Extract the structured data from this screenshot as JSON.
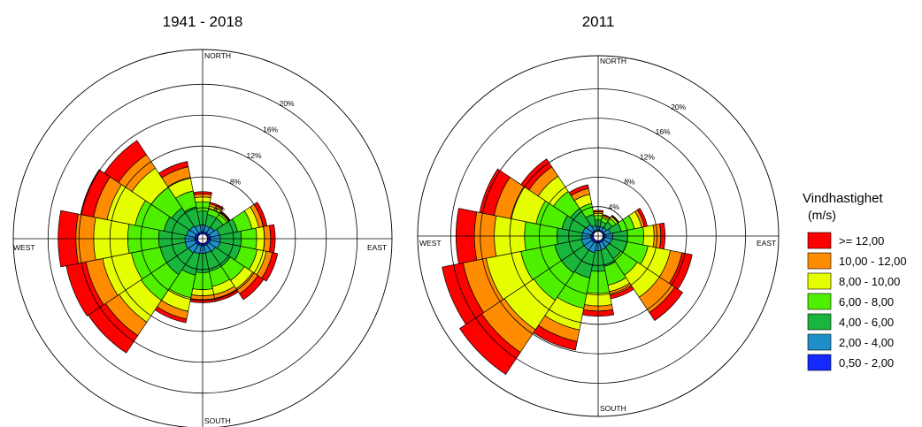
{
  "chart_data": [
    {
      "type": "wind-rose",
      "title": "1941 - 2018",
      "directions": [
        "NORTH",
        "EAST",
        "SOUTH",
        "WEST"
      ],
      "rings": [
        "4%",
        "8%",
        "12%",
        "16%",
        "20%"
      ],
      "ring_values": [
        4,
        8,
        12,
        16,
        20
      ],
      "rmax": 24.5,
      "sector_count": 16,
      "sector_angles_deg": [
        0,
        22.5,
        45,
        67.5,
        90,
        112.5,
        135,
        157.5,
        180,
        202.5,
        225,
        247.5,
        270,
        292.5,
        315,
        337.5
      ],
      "cumulative_percent": [
        [
          0.9,
          1.8,
          3.6,
          4.8,
          5.4,
          5.8,
          6.1
        ],
        [
          0.9,
          1.7,
          3.2,
          3.9,
          4.3,
          4.6,
          4.8
        ],
        [
          0.9,
          1.8,
          3.2,
          3.8,
          4.1,
          4.2,
          4.3
        ],
        [
          1.0,
          2.2,
          4.6,
          6.5,
          7.4,
          8.0,
          8.5
        ],
        [
          1.0,
          2.3,
          5.0,
          7.0,
          8.0,
          8.8,
          9.4
        ],
        [
          1.0,
          2.3,
          5.0,
          7.2,
          8.4,
          9.2,
          9.9
        ],
        [
          0.9,
          2.0,
          4.3,
          6.5,
          7.8,
          8.6,
          9.5
        ],
        [
          0.9,
          1.9,
          4.3,
          6.3,
          7.4,
          7.9,
          8.3
        ],
        [
          0.9,
          1.9,
          4.4,
          6.6,
          7.4,
          7.9,
          8.3
        ],
        [
          0.9,
          2.0,
          4.8,
          7.8,
          9.6,
          10.6,
          11.1
        ],
        [
          1.0,
          2.2,
          5.6,
          9.6,
          13.0,
          15.1,
          17.8
        ],
        [
          1.0,
          2.3,
          5.6,
          9.4,
          13.2,
          15.4,
          18.0
        ],
        [
          1.0,
          2.3,
          5.7,
          9.7,
          14.1,
          16.4,
          18.7
        ],
        [
          1.0,
          2.1,
          5.1,
          8.9,
          12.6,
          14.4,
          16.1
        ],
        [
          0.9,
          2.0,
          4.8,
          8.0,
          11.0,
          13.1,
          15.3
        ],
        [
          0.9,
          1.8,
          4.2,
          6.3,
          8.1,
          9.5,
          10.2
        ]
      ]
    },
    {
      "type": "wind-rose",
      "title": "2011",
      "directions": [
        "NORTH",
        "EAST",
        "SOUTH",
        "WEST"
      ],
      "rings": [
        "4%",
        "8%",
        "12%",
        "16%",
        "20%"
      ],
      "ring_values": [
        4,
        8,
        12,
        16,
        20
      ],
      "rmax": 24.5,
      "sector_count": 16,
      "sector_angles_deg": [
        0,
        22.5,
        45,
        67.5,
        90,
        112.5,
        135,
        157.5,
        180,
        202.5,
        225,
        247.5,
        270,
        292.5,
        315,
        337.5
      ],
      "cumulative_percent": [
        [
          0.8,
          1.3,
          2.2,
          2.8,
          3.1,
          3.3,
          3.5
        ],
        [
          0.8,
          1.3,
          2.0,
          2.5,
          2.7,
          2.9,
          3.0
        ],
        [
          0.8,
          1.4,
          2.3,
          2.9,
          3.2,
          3.3,
          3.4
        ],
        [
          0.9,
          1.7,
          3.2,
          5.0,
          6.0,
          6.4,
          6.8
        ],
        [
          1.0,
          2.0,
          4.0,
          6.2,
          7.6,
          8.5,
          9.1
        ],
        [
          0.9,
          1.9,
          4.0,
          6.9,
          10.0,
          11.6,
          13.0
        ],
        [
          0.9,
          1.8,
          3.7,
          6.4,
          10.0,
          12.5,
          13.8
        ],
        [
          0.9,
          1.9,
          4.2,
          6.8,
          7.7,
          8.2,
          8.7
        ],
        [
          0.9,
          2.0,
          4.8,
          7.8,
          9.5,
          10.2,
          10.9
        ],
        [
          1.0,
          2.3,
          5.8,
          10.0,
          13.0,
          14.6,
          15.8
        ],
        [
          1.0,
          2.3,
          6.0,
          10.5,
          15.3,
          19.0,
          22.6
        ],
        [
          1.0,
          2.3,
          6.0,
          10.7,
          15.5,
          18.7,
          21.6
        ],
        [
          1.0,
          2.2,
          5.6,
          10.0,
          14.1,
          16.8,
          19.3
        ],
        [
          0.9,
          2.1,
          5.0,
          8.6,
          12.1,
          14.4,
          16.4
        ],
        [
          0.9,
          1.9,
          4.5,
          7.3,
          9.8,
          11.3,
          12.6
        ],
        [
          0.8,
          1.5,
          3.0,
          4.5,
          5.8,
          6.6,
          7.1
        ]
      ]
    }
  ],
  "legend": {
    "title": "Vindhastighet",
    "unit": "(m/s)",
    "items": [
      {
        "label": ">= 12,00",
        "color": "#ff0000"
      },
      {
        "label": "10,00 - 12,00",
        "color": "#ff8c00"
      },
      {
        "label": "8,00 - 10,00",
        "color": "#e6ff00"
      },
      {
        "label": "6,00 - 8,00",
        "color": "#4ef000"
      },
      {
        "label": "4,00 - 6,00",
        "color": "#19b53c"
      },
      {
        "label": "2,00 - 4,00",
        "color": "#1e8fc8"
      },
      {
        "label": "0,50 - 2,00",
        "color": "#1428ff"
      }
    ]
  },
  "band_colors_inner_to_outer": [
    "#1428ff",
    "#1e8fc8",
    "#19b53c",
    "#4ef000",
    "#e6ff00",
    "#ff8c00",
    "#ff0000"
  ]
}
